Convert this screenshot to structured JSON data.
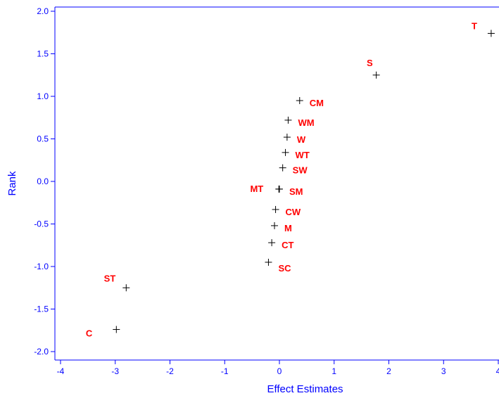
{
  "chart_data": {
    "type": "scatter",
    "title": "",
    "xlabel": "Effect Estimates",
    "ylabel": "Rank",
    "xlim": [
      -4.1,
      4.0
    ],
    "ylim": [
      -2.05,
      2.05
    ],
    "xticks": [
      -4,
      -3,
      -2,
      -1,
      0,
      1,
      2,
      3,
      4
    ],
    "xtick_labels": [
      "-4",
      "-3",
      "-2",
      "-1",
      "0",
      "1",
      "2",
      "3",
      "4"
    ],
    "yticks": [
      -2.0,
      -1.5,
      -1.0,
      -0.5,
      0.0,
      0.5,
      1.0,
      1.5,
      2.0
    ],
    "ytick_labels": [
      "-2.0",
      "-1.5",
      "-1.0",
      "-0.5",
      "0.0",
      "0.5",
      "1.0",
      "1.5",
      "2.0"
    ],
    "grid": false,
    "marker": "plus",
    "colors": {
      "axis": "#0000ff",
      "marker": "#000000",
      "labels": "#ff0000"
    },
    "points": [
      {
        "label": "T",
        "x": 3.87,
        "y": 1.74,
        "label_side": "left"
      },
      {
        "label": "S",
        "x": 1.77,
        "y": 1.25,
        "label_side": "left"
      },
      {
        "label": "CM",
        "x": 0.37,
        "y": 0.95,
        "label_side": "right"
      },
      {
        "label": "WM",
        "x": 0.16,
        "y": 0.72,
        "label_side": "right"
      },
      {
        "label": "W",
        "x": 0.14,
        "y": 0.52,
        "label_side": "right"
      },
      {
        "label": "WT",
        "x": 0.11,
        "y": 0.34,
        "label_side": "right"
      },
      {
        "label": "SW",
        "x": 0.06,
        "y": 0.16,
        "label_side": "right"
      },
      {
        "label": "MT",
        "x": -0.01,
        "y": -0.09,
        "label_side": "left"
      },
      {
        "label": "SM",
        "x": 0.0,
        "y": -0.09,
        "label_side": "right"
      },
      {
        "label": "CW",
        "x": -0.07,
        "y": -0.33,
        "label_side": "right"
      },
      {
        "label": "M",
        "x": -0.09,
        "y": -0.52,
        "label_side": "right"
      },
      {
        "label": "CT",
        "x": -0.14,
        "y": -0.72,
        "label_side": "right"
      },
      {
        "label": "SC",
        "x": -0.2,
        "y": -0.95,
        "label_side": "right"
      },
      {
        "label": "ST",
        "x": -2.8,
        "y": -1.25,
        "label_side": "left"
      },
      {
        "label": "C",
        "x": -2.98,
        "y": -1.74,
        "label_side": "left"
      }
    ]
  }
}
